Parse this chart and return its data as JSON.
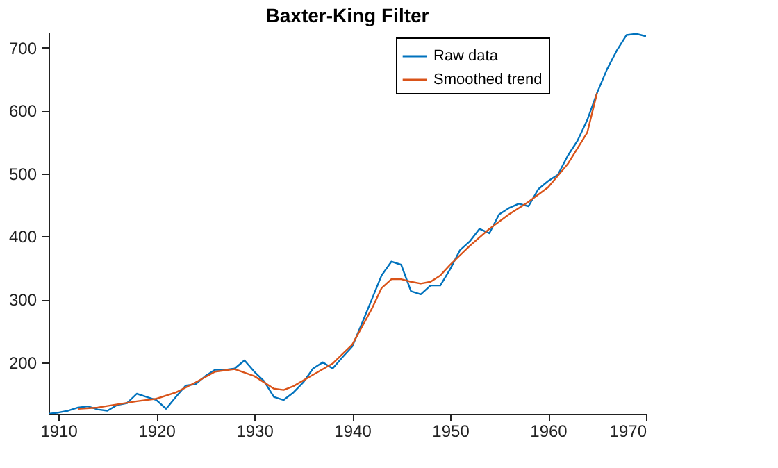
{
  "chart_data": {
    "type": "line",
    "title": "Baxter-King Filter",
    "xlim": [
      1909,
      1970
    ],
    "xticks": [
      1910,
      1920,
      1930,
      1940,
      1950,
      1960,
      1970
    ],
    "ylim": [
      118,
      725
    ],
    "yticks": [
      200,
      300,
      400,
      500,
      600,
      700
    ],
    "grid": false,
    "legend": "top right",
    "series": [
      {
        "name": "Raw data",
        "color": "#0072bd",
        "x": [
          1909,
          1910,
          1911,
          1912,
          1913,
          1914,
          1915,
          1916,
          1917,
          1918,
          1919,
          1920,
          1921,
          1922,
          1923,
          1924,
          1925,
          1926,
          1927,
          1928,
          1929,
          1930,
          1931,
          1932,
          1933,
          1934,
          1935,
          1936,
          1937,
          1938,
          1939,
          1940,
          1941,
          1942,
          1943,
          1944,
          1945,
          1946,
          1947,
          1948,
          1949,
          1950,
          1951,
          1952,
          1953,
          1954,
          1955,
          1956,
          1957,
          1958,
          1959,
          1960,
          1961,
          1962,
          1963,
          1964,
          1965,
          1966,
          1967,
          1968,
          1969,
          1970
        ],
        "values": [
          118,
          120,
          123,
          128,
          130,
          125,
          123,
          132,
          135,
          150,
          145,
          140,
          126,
          145,
          163,
          165,
          178,
          188,
          188,
          190,
          203,
          185,
          170,
          145,
          140,
          152,
          168,
          190,
          200,
          190,
          208,
          225,
          262,
          300,
          338,
          360,
          355,
          313,
          308,
          322,
          322,
          348,
          378,
          392,
          412,
          405,
          435,
          445,
          452,
          448,
          475,
          488,
          498,
          528,
          552,
          585,
          628,
          665,
          695,
          720,
          722,
          718
        ]
      },
      {
        "name": "Smoothed trend",
        "color": "#d95319",
        "x": [
          1912,
          1914,
          1916,
          1918,
          1920,
          1922,
          1924,
          1926,
          1928,
          1930,
          1932,
          1933,
          1934,
          1936,
          1938,
          1940,
          1942,
          1943,
          1944,
          1945,
          1946,
          1947,
          1948,
          1949,
          1950,
          1952,
          1954,
          1956,
          1958,
          1960,
          1962,
          1964,
          1965
        ],
        "values": [
          126,
          128,
          133,
          138,
          142,
          152,
          168,
          185,
          189,
          178,
          158,
          156,
          162,
          180,
          198,
          228,
          285,
          318,
          332,
          332,
          328,
          325,
          328,
          338,
          355,
          385,
          412,
          435,
          455,
          478,
          515,
          565,
          628
        ]
      }
    ]
  }
}
